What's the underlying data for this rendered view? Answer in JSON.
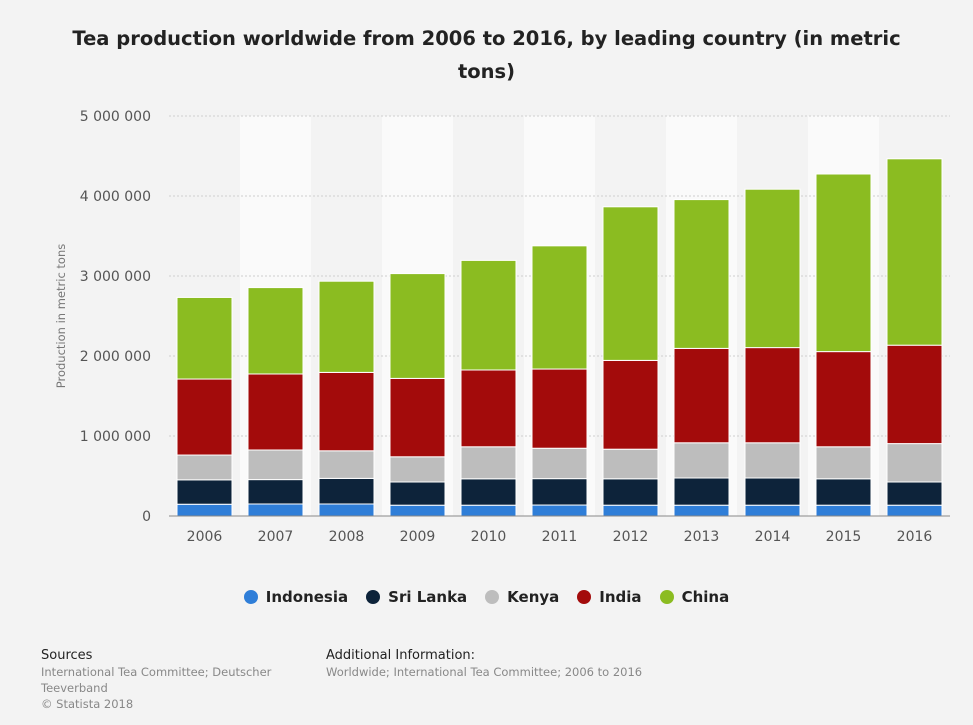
{
  "title": "Tea production worldwide from 2006 to 2016, by leading country (in metric tons)",
  "colors": {
    "Indonesia": "#2f7ed8",
    "Sri Lanka": "#0d233a",
    "Kenya": "#bdbdbd",
    "India": "#a30b0b",
    "China": "#8bbc21"
  },
  "legend": [
    {
      "name": "Indonesia",
      "color": "#2f7ed8"
    },
    {
      "name": "Sri Lanka",
      "color": "#0d233a"
    },
    {
      "name": "Kenya",
      "color": "#bdbdbd"
    },
    {
      "name": "India",
      "color": "#a30b0b"
    },
    {
      "name": "China",
      "color": "#8bbc21"
    }
  ],
  "chart_data": {
    "type": "bar",
    "stacked": true,
    "title": "Tea production worldwide from 2006 to 2016, by leading country (in metric tons)",
    "xlabel": "",
    "ylabel": "Production in metric tons",
    "ylim": [
      0,
      5000000
    ],
    "yticks": [
      0,
      1000000,
      2000000,
      3000000,
      4000000,
      5000000
    ],
    "ytick_labels": [
      "0",
      "1 000 000",
      "2 000 000",
      "3 000 000",
      "4 000 000",
      "5 000 000"
    ],
    "grid": true,
    "legend_position": "bottom",
    "categories": [
      "2006",
      "2007",
      "2008",
      "2009",
      "2010",
      "2011",
      "2012",
      "2013",
      "2014",
      "2015",
      "2016"
    ],
    "series": [
      {
        "name": "Indonesia",
        "values": [
          147000,
          150000,
          150000,
          135000,
          135000,
          137000,
          135000,
          135000,
          135000,
          135000,
          135000
        ]
      },
      {
        "name": "Sri Lanka",
        "values": [
          305000,
          305000,
          320000,
          290000,
          330000,
          330000,
          330000,
          340000,
          340000,
          330000,
          290000
        ]
      },
      {
        "name": "Kenya",
        "values": [
          310000,
          370000,
          345000,
          315000,
          400000,
          380000,
          370000,
          440000,
          440000,
          400000,
          480000
        ]
      },
      {
        "name": "India",
        "values": [
          950000,
          950000,
          980000,
          980000,
          960000,
          990000,
          1110000,
          1180000,
          1190000,
          1190000,
          1230000
        ]
      },
      {
        "name": "China",
        "values": [
          1020000,
          1080000,
          1140000,
          1310000,
          1370000,
          1540000,
          1920000,
          1860000,
          1980000,
          2220000,
          2330000
        ]
      }
    ]
  },
  "footer": {
    "sources_heading": "Sources",
    "sources_text": "International Tea Committee; Deutscher Teeverband",
    "copyright": "© Statista 2018",
    "info_heading": "Additional Information:",
    "info_text": "Worldwide; International Tea Committee; 2006 to 2016"
  }
}
